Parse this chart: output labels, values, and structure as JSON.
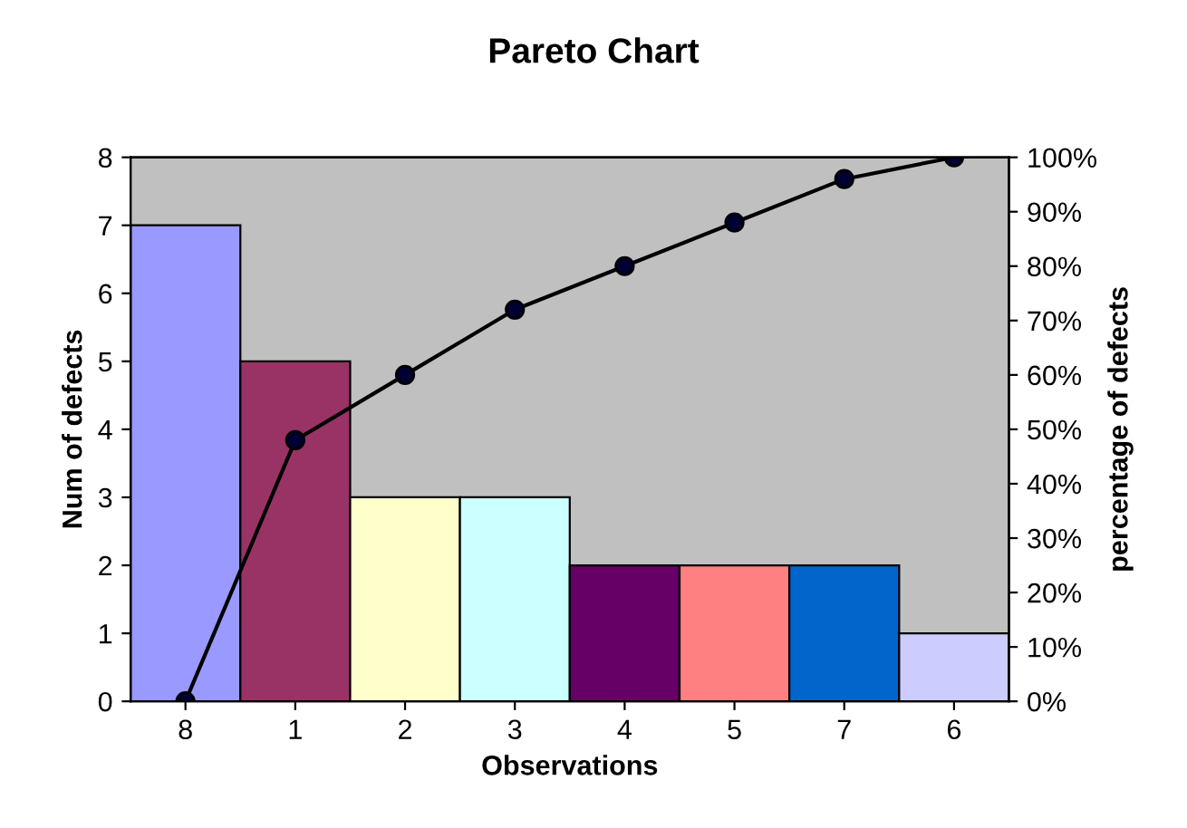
{
  "chart_data": {
    "type": "bar",
    "title": "Pareto Chart",
    "xlabel": "Observations",
    "ylabel": "Num of defects",
    "y2label": "percentage of defects",
    "categories": [
      "8",
      "1",
      "2",
      "3",
      "4",
      "5",
      "7",
      "6"
    ],
    "series": [
      {
        "colors": [
          "#9999ff",
          "#993366",
          "#ffffcc",
          "#ccffff",
          "#660066",
          "#ff8080",
          "#0066cc",
          "#ccccff"
        ],
        "values": [
          7,
          5,
          3,
          3,
          2,
          2,
          2,
          1
        ]
      },
      {
        "type": "line",
        "axis": "y2",
        "color": "#000000",
        "marker": "circle",
        "values": [
          0,
          48,
          60,
          72,
          80,
          88,
          96,
          100
        ]
      }
    ],
    "ylim": [
      0,
      8
    ],
    "yticks": [
      0,
      1,
      2,
      3,
      4,
      5,
      6,
      7,
      8
    ],
    "y2lim": [
      0,
      100
    ],
    "y2ticks": [
      {
        "value": 0,
        "label": "0%"
      },
      {
        "value": 10,
        "label": "10%"
      },
      {
        "value": 20,
        "label": "20%"
      },
      {
        "value": 30,
        "label": "30%"
      },
      {
        "value": 40,
        "label": "40%"
      },
      {
        "value": 50,
        "label": "50%"
      },
      {
        "value": 60,
        "label": "60%"
      },
      {
        "value": 70,
        "label": "70%"
      },
      {
        "value": 80,
        "label": "80%"
      },
      {
        "value": 90,
        "label": "90%"
      },
      {
        "value": 100,
        "label": "100%"
      }
    ],
    "grid": false
  }
}
